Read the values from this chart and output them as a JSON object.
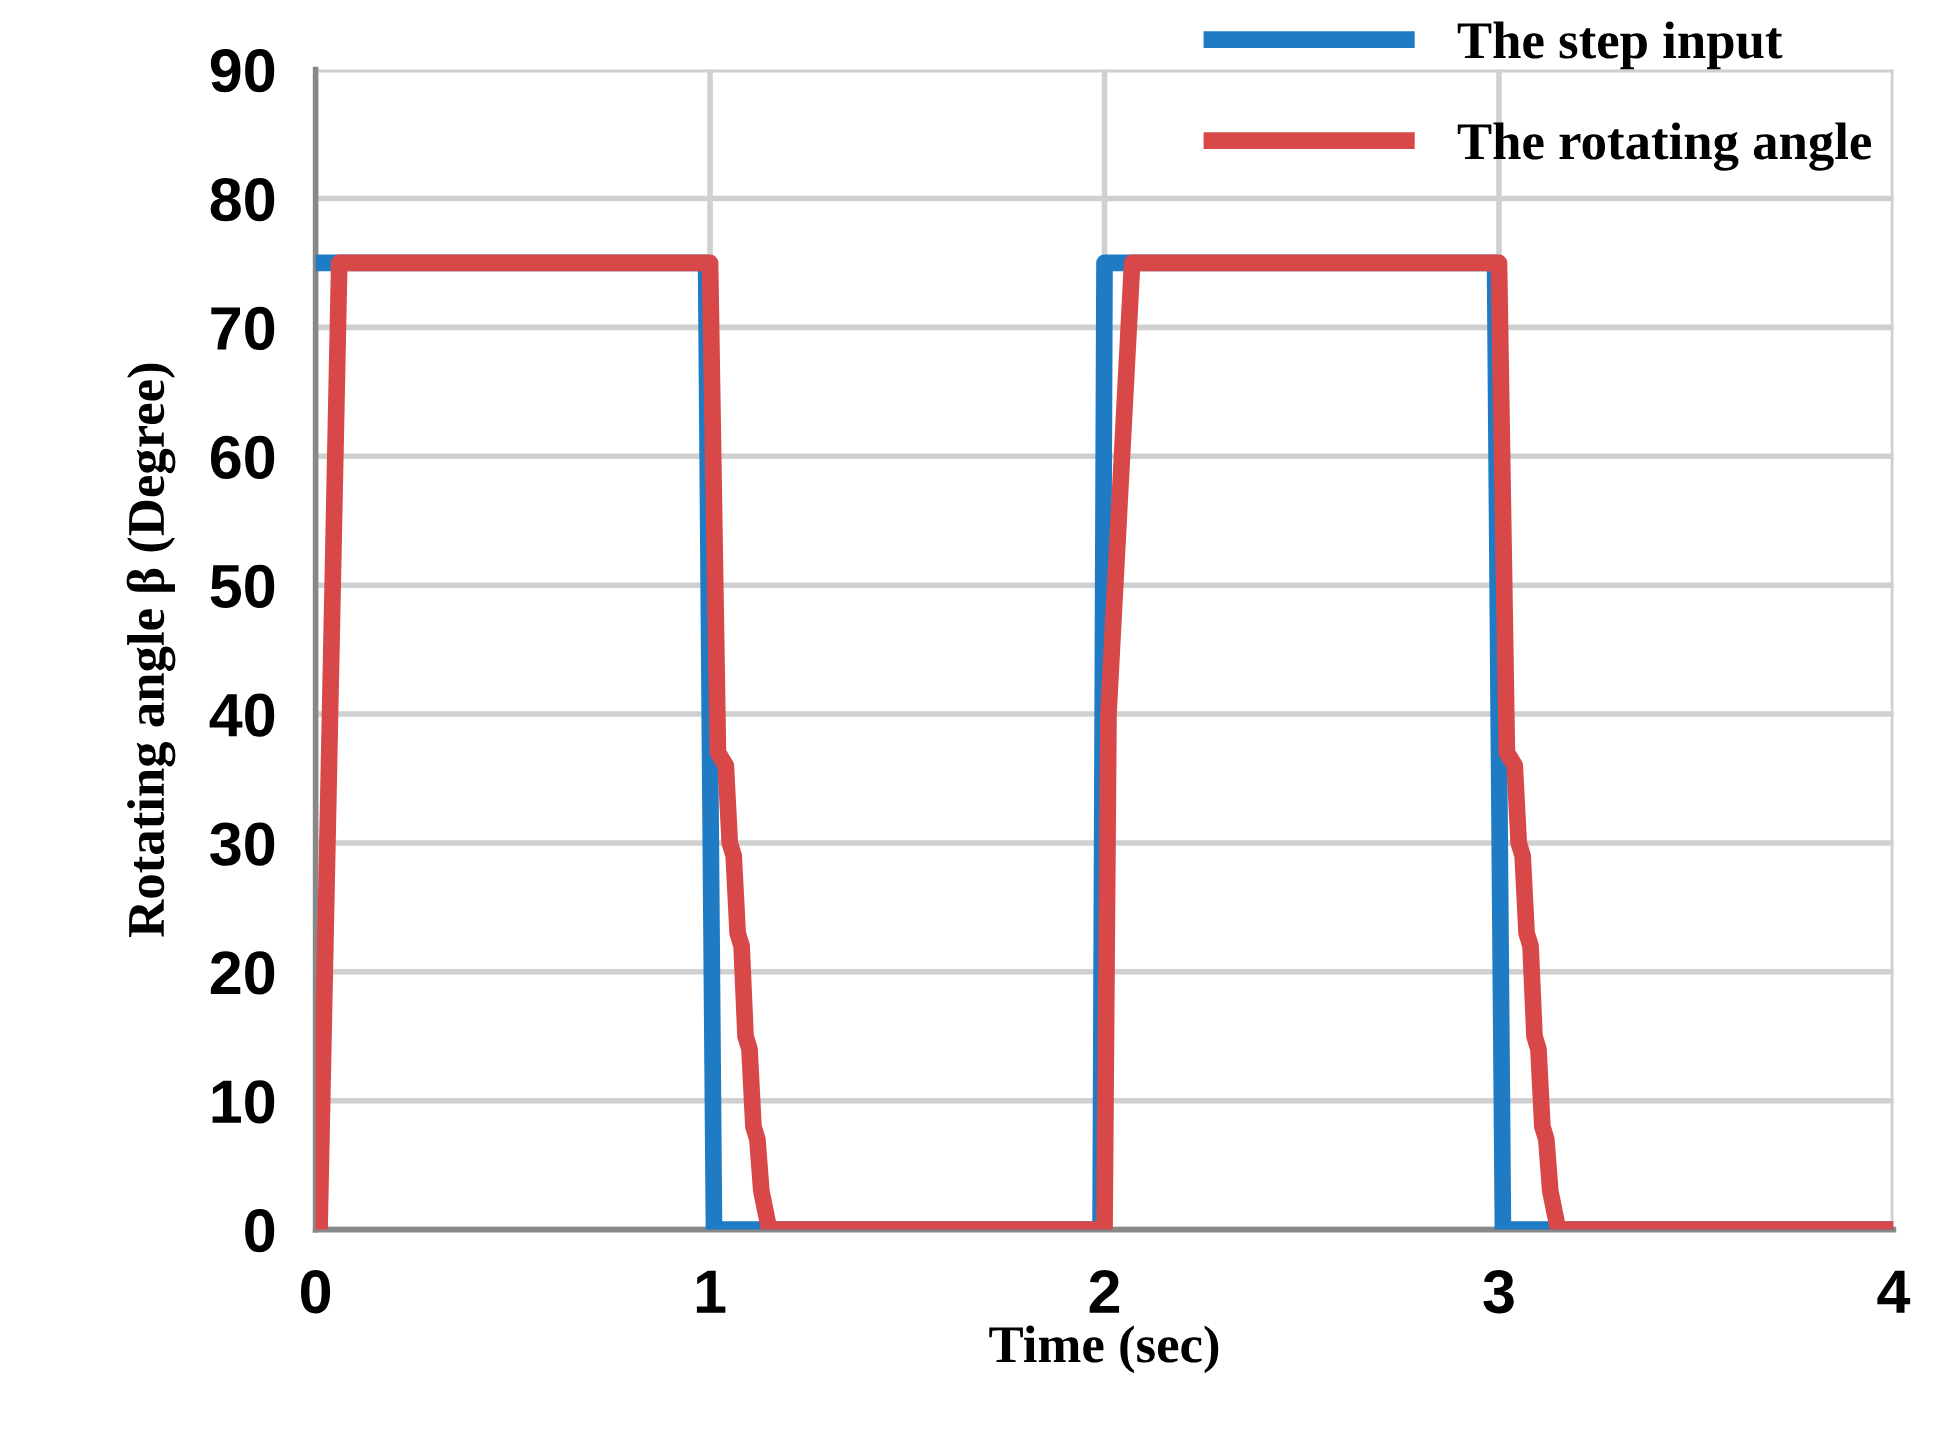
{
  "chart_data": {
    "type": "line",
    "xlabel": "Time (sec)",
    "ylabel": "Rotating angle β (Degree)",
    "xlim": [
      0,
      4
    ],
    "ylim": [
      0,
      90
    ],
    "xticks": [
      0,
      1,
      2,
      3,
      4
    ],
    "yticks": [
      0,
      10,
      20,
      30,
      40,
      50,
      60,
      70,
      80,
      90
    ],
    "grid": true,
    "legend": "top right",
    "marker": "none",
    "line_style": "solid",
    "series": [
      {
        "name": "The step input",
        "color": "#1f7bc4",
        "x": [
          0,
          0.99,
          1.0,
          1.01,
          1.99,
          2.0,
          2.99,
          3.0,
          3.01,
          4
        ],
        "values": [
          75,
          75,
          37,
          0,
          0,
          75,
          75,
          37,
          0,
          0
        ]
      },
      {
        "name": "The rotating angle",
        "color": "#d94848",
        "x": [
          0.01,
          0.06,
          1.0,
          1.02,
          1.04,
          1.05,
          1.06,
          1.07,
          1.08,
          1.09,
          1.1,
          1.11,
          1.12,
          1.13,
          1.15,
          2.0,
          2.01,
          2.07,
          3.0,
          3.02,
          3.04,
          3.05,
          3.06,
          3.07,
          3.08,
          3.09,
          3.1,
          3.11,
          3.12,
          3.13,
          3.15,
          4
        ],
        "values": [
          0,
          75,
          75,
          37,
          36,
          30,
          29,
          23,
          22,
          15,
          14,
          8,
          7,
          3,
          0,
          0,
          40,
          75,
          75,
          37,
          36,
          30,
          29,
          23,
          22,
          15,
          14,
          8,
          7,
          3,
          0,
          0
        ]
      }
    ]
  }
}
